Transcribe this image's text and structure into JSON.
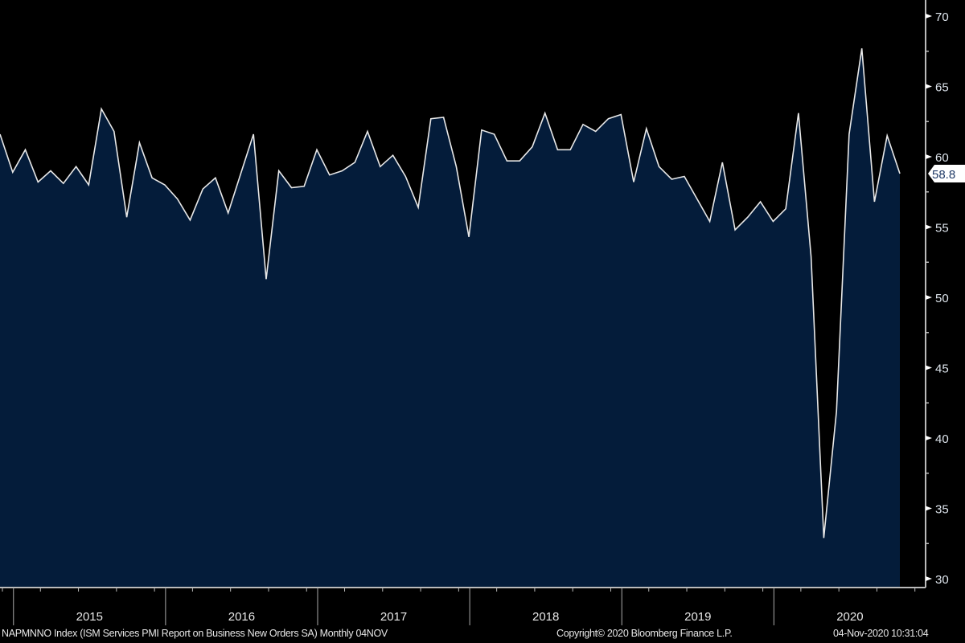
{
  "chart_data": {
    "type": "area",
    "title": "NAPMNNO Index (ISM Services PMI Report on Business New Orders SA)  Monthly 04NOV",
    "start_month": "2014-11",
    "frequency": "monthly",
    "values": [
      61.6,
      58.9,
      60.5,
      58.2,
      59.0,
      58.1,
      59.3,
      58.0,
      63.4,
      61.8,
      55.7,
      61.0,
      58.5,
      58.0,
      57.0,
      55.5,
      57.7,
      58.5,
      56.0,
      58.8,
      61.6,
      51.3,
      59.0,
      57.8,
      57.9,
      60.5,
      58.7,
      59.0,
      59.6,
      61.8,
      59.3,
      60.1,
      58.6,
      56.4,
      62.7,
      62.8,
      59.3,
      54.3,
      61.9,
      61.6,
      59.7,
      59.7,
      60.7,
      63.1,
      60.5,
      60.5,
      62.3,
      61.8,
      62.7,
      63.0,
      58.2,
      62.0,
      59.3,
      58.4,
      58.6,
      57.0,
      55.4,
      59.6,
      54.8,
      55.7,
      56.8,
      55.4,
      56.3,
      63.1,
      52.9,
      32.9,
      41.9,
      61.6,
      67.7,
      56.8,
      61.5,
      58.8
    ],
    "x_tick_labels": [
      "2015",
      "2016",
      "2017",
      "2018",
      "2019",
      "2020"
    ],
    "y_tick_labels": [
      "30",
      "35",
      "40",
      "45",
      "50",
      "55",
      "60",
      "65",
      "70"
    ],
    "ylim": [
      30,
      70
    ],
    "y_axis_side": "right",
    "last_value_label": "58.8",
    "grid": false,
    "colors": {
      "fill": "#041c3a",
      "line": "#e8e8e8",
      "tick_label": "#dfe6ee",
      "background": "#000000"
    }
  },
  "footer": {
    "description": "NAPMNNO Index (ISM Services PMI Report on Business New Orders SA)  Monthly 04NOV",
    "copyright": "Copyright© 2020 Bloomberg Finance L.P.",
    "timestamp": "04-Nov-2020 10:31:04"
  }
}
